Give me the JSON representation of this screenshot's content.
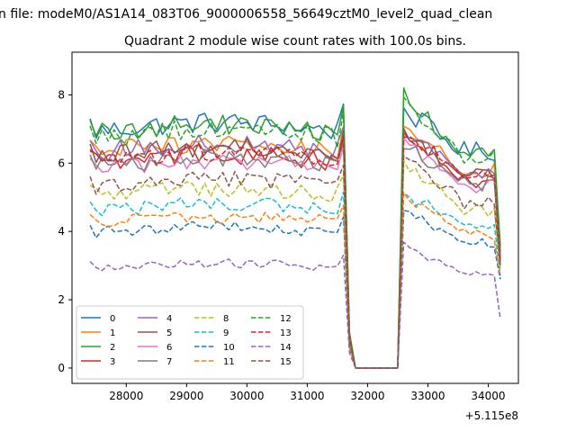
{
  "chart_data": {
    "type": "line",
    "suptitle": "n file: modeM0/AS1A14_083T06_9000006558_56649cztM0_level2_quad_clean",
    "title": "Quadrant 2 module wise count rates with 100.0s bins.",
    "xlabel": "",
    "ylabel": "",
    "offset_text": "+5.115e8",
    "xlim": [
      27100,
      34500
    ],
    "ylim": [
      -0.45,
      9.25
    ],
    "xticks": [
      28000,
      29000,
      30000,
      31000,
      32000,
      33000,
      34000
    ],
    "xtick_labels": [
      "28000",
      "29000",
      "30000",
      "31000",
      "32000",
      "33000",
      "34000"
    ],
    "yticks": [
      0,
      2,
      4,
      6,
      8
    ],
    "ytick_labels": [
      "0",
      "2",
      "4",
      "6",
      "8"
    ],
    "legend_position": "lower-left",
    "legend_columns": 4,
    "x_start": 27400,
    "x_step": 100,
    "gap": {
      "x_from": 31600,
      "x_to": 32500,
      "drop_x": 31700,
      "zero_x": [
        31800,
        32500
      ],
      "rise_x": 32600
    },
    "end_x": 34200,
    "series": [
      {
        "name": "0",
        "color": "#1f77b4",
        "dash": "solid",
        "level": 6.9,
        "peak": 7.55,
        "end": 3.4
      },
      {
        "name": "1",
        "color": "#ff7f0e",
        "dash": "solid",
        "level": 6.3,
        "peak": 7.2,
        "end": 3.2
      },
      {
        "name": "2",
        "color": "#2ca02c",
        "dash": "solid",
        "level": 6.85,
        "peak": 7.95,
        "end": 3.6
      },
      {
        "name": "3",
        "color": "#d62728",
        "dash": "solid",
        "level": 6.0,
        "peak": 6.85,
        "end": 3.1
      },
      {
        "name": "4",
        "color": "#9467bd",
        "dash": "solid",
        "level": 6.3,
        "peak": 6.9,
        "end": 3.3
      },
      {
        "name": "5",
        "color": "#8c564b",
        "dash": "solid",
        "level": 6.2,
        "peak": 6.8,
        "end": 3.2
      },
      {
        "name": "6",
        "color": "#e377c2",
        "dash": "solid",
        "level": 5.8,
        "peak": 6.7,
        "end": 3.0
      },
      {
        "name": "7",
        "color": "#7f7f7f",
        "dash": "solid",
        "level": 5.9,
        "peak": 6.55,
        "end": 3.0
      },
      {
        "name": "8",
        "color": "#bcbd22",
        "dash": "dashed",
        "level": 5.05,
        "peak": 5.9,
        "end": 2.9
      },
      {
        "name": "9",
        "color": "#17becf",
        "dash": "dashed",
        "level": 4.6,
        "peak": 5.1,
        "end": 2.7
      },
      {
        "name": "10",
        "color": "#1f77b4",
        "dash": "dashed",
        "level": 3.95,
        "peak": 4.7,
        "end": 2.6
      },
      {
        "name": "11",
        "color": "#ff7f0e",
        "dash": "dashed",
        "level": 4.25,
        "peak": 5.0,
        "end": 2.7
      },
      {
        "name": "12",
        "color": "#2ca02c",
        "dash": "dashed",
        "level": 6.7,
        "peak": 7.9,
        "end": 3.5
      },
      {
        "name": "13",
        "color": "#d62728",
        "dash": "dashed",
        "level": 6.05,
        "peak": 6.9,
        "end": 3.1
      },
      {
        "name": "14",
        "color": "#9467bd",
        "dash": "dashed",
        "level": 2.95,
        "peak": 3.6,
        "end": 1.45
      },
      {
        "name": "15",
        "color": "#8c564b",
        "dash": "dashed",
        "level": 5.3,
        "peak": 6.2,
        "end": 3.0
      }
    ]
  }
}
